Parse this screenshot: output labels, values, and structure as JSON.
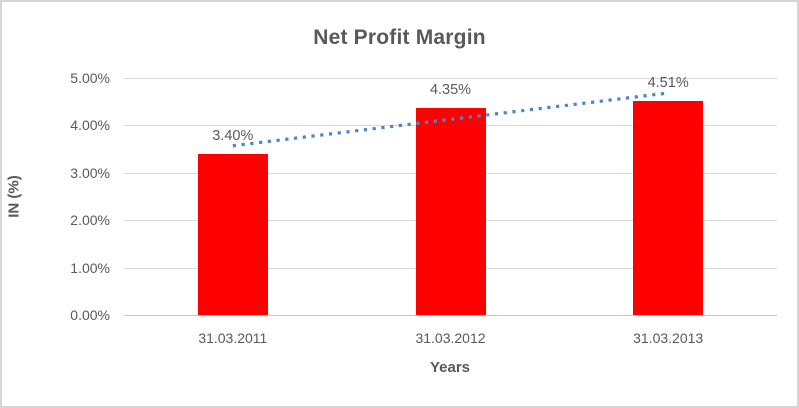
{
  "chart_data": {
    "type": "bar",
    "title": "Net Profit Margin",
    "xlabel": "Years",
    "ylabel": "IN (%)",
    "categories": [
      "31.03.2011",
      "31.03.2012",
      "31.03.2013"
    ],
    "values": [
      3.4,
      4.35,
      4.51
    ],
    "data_labels": [
      "3.40%",
      "4.35%",
      "4.51%"
    ],
    "yticks": [
      "0.00%",
      "1.00%",
      "2.00%",
      "3.00%",
      "4.00%",
      "5.00%"
    ],
    "ylim": [
      0,
      5
    ],
    "grid": true,
    "legend": false,
    "bar_color": "#ff0000",
    "trendline": {
      "kind": "linear",
      "style": "dotted",
      "color": "#4a86c8"
    },
    "text_color": "#595959",
    "gridline_color": "#d9d9d9"
  }
}
